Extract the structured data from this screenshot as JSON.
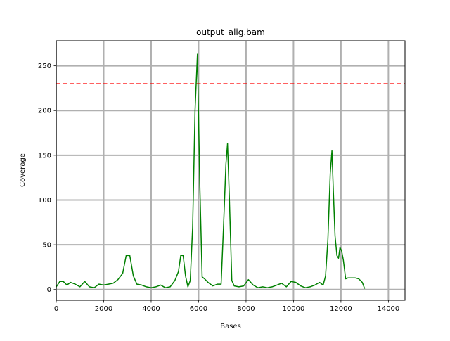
{
  "chart_data": {
    "type": "line",
    "title": "output_alig.bam",
    "xlabel": "Bases",
    "ylabel": "Coverage",
    "xlim": [
      0,
      14700
    ],
    "ylim": [
      -12,
      278
    ],
    "xticks": [
      0,
      2000,
      4000,
      6000,
      8000,
      10000,
      12000,
      14000
    ],
    "yticks": [
      0,
      50,
      100,
      150,
      200,
      250
    ],
    "grid": true,
    "threshold": {
      "y": 230,
      "color": "#ff0000",
      "style": "dashed"
    },
    "series": [
      {
        "color": "#008000",
        "x": [
          0,
          150,
          300,
          450,
          600,
          800,
          1000,
          1200,
          1400,
          1600,
          1800,
          2000,
          2200,
          2400,
          2600,
          2800,
          2950,
          3100,
          3250,
          3400,
          3600,
          3800,
          4000,
          4200,
          4400,
          4600,
          4800,
          5000,
          5150,
          5250,
          5350,
          5450,
          5550,
          5650,
          5750,
          5850,
          5950,
          6050,
          6150,
          6250,
          6400,
          6600,
          6800,
          6950,
          7050,
          7150,
          7220,
          7300,
          7400,
          7500,
          7700,
          7900,
          8100,
          8300,
          8500,
          8700,
          8900,
          9100,
          9300,
          9500,
          9700,
          9900,
          10100,
          10300,
          10500,
          10700,
          10900,
          11100,
          11250,
          11350,
          11450,
          11550,
          11620,
          11680,
          11750,
          11830,
          11900,
          11960,
          12030,
          12100,
          12200,
          12300,
          12450,
          12600,
          12750,
          12900,
          13000
        ],
        "y": [
          3,
          9,
          9,
          5,
          8,
          6,
          3,
          9,
          3,
          2,
          6,
          5,
          6,
          7,
          11,
          18,
          38,
          38,
          15,
          6,
          5,
          3,
          2,
          3,
          5,
          2,
          3,
          10,
          20,
          38,
          38,
          15,
          3,
          10,
          70,
          200,
          263,
          120,
          14,
          12,
          8,
          4,
          6,
          6,
          70,
          140,
          163,
          100,
          10,
          4,
          3,
          4,
          11,
          5,
          2,
          3,
          2,
          3,
          5,
          7,
          3,
          9,
          8,
          4,
          2,
          3,
          5,
          8,
          5,
          15,
          55,
          130,
          155,
          110,
          60,
          38,
          35,
          47,
          43,
          33,
          12,
          13,
          13,
          13,
          12,
          8,
          1
        ]
      }
    ]
  }
}
